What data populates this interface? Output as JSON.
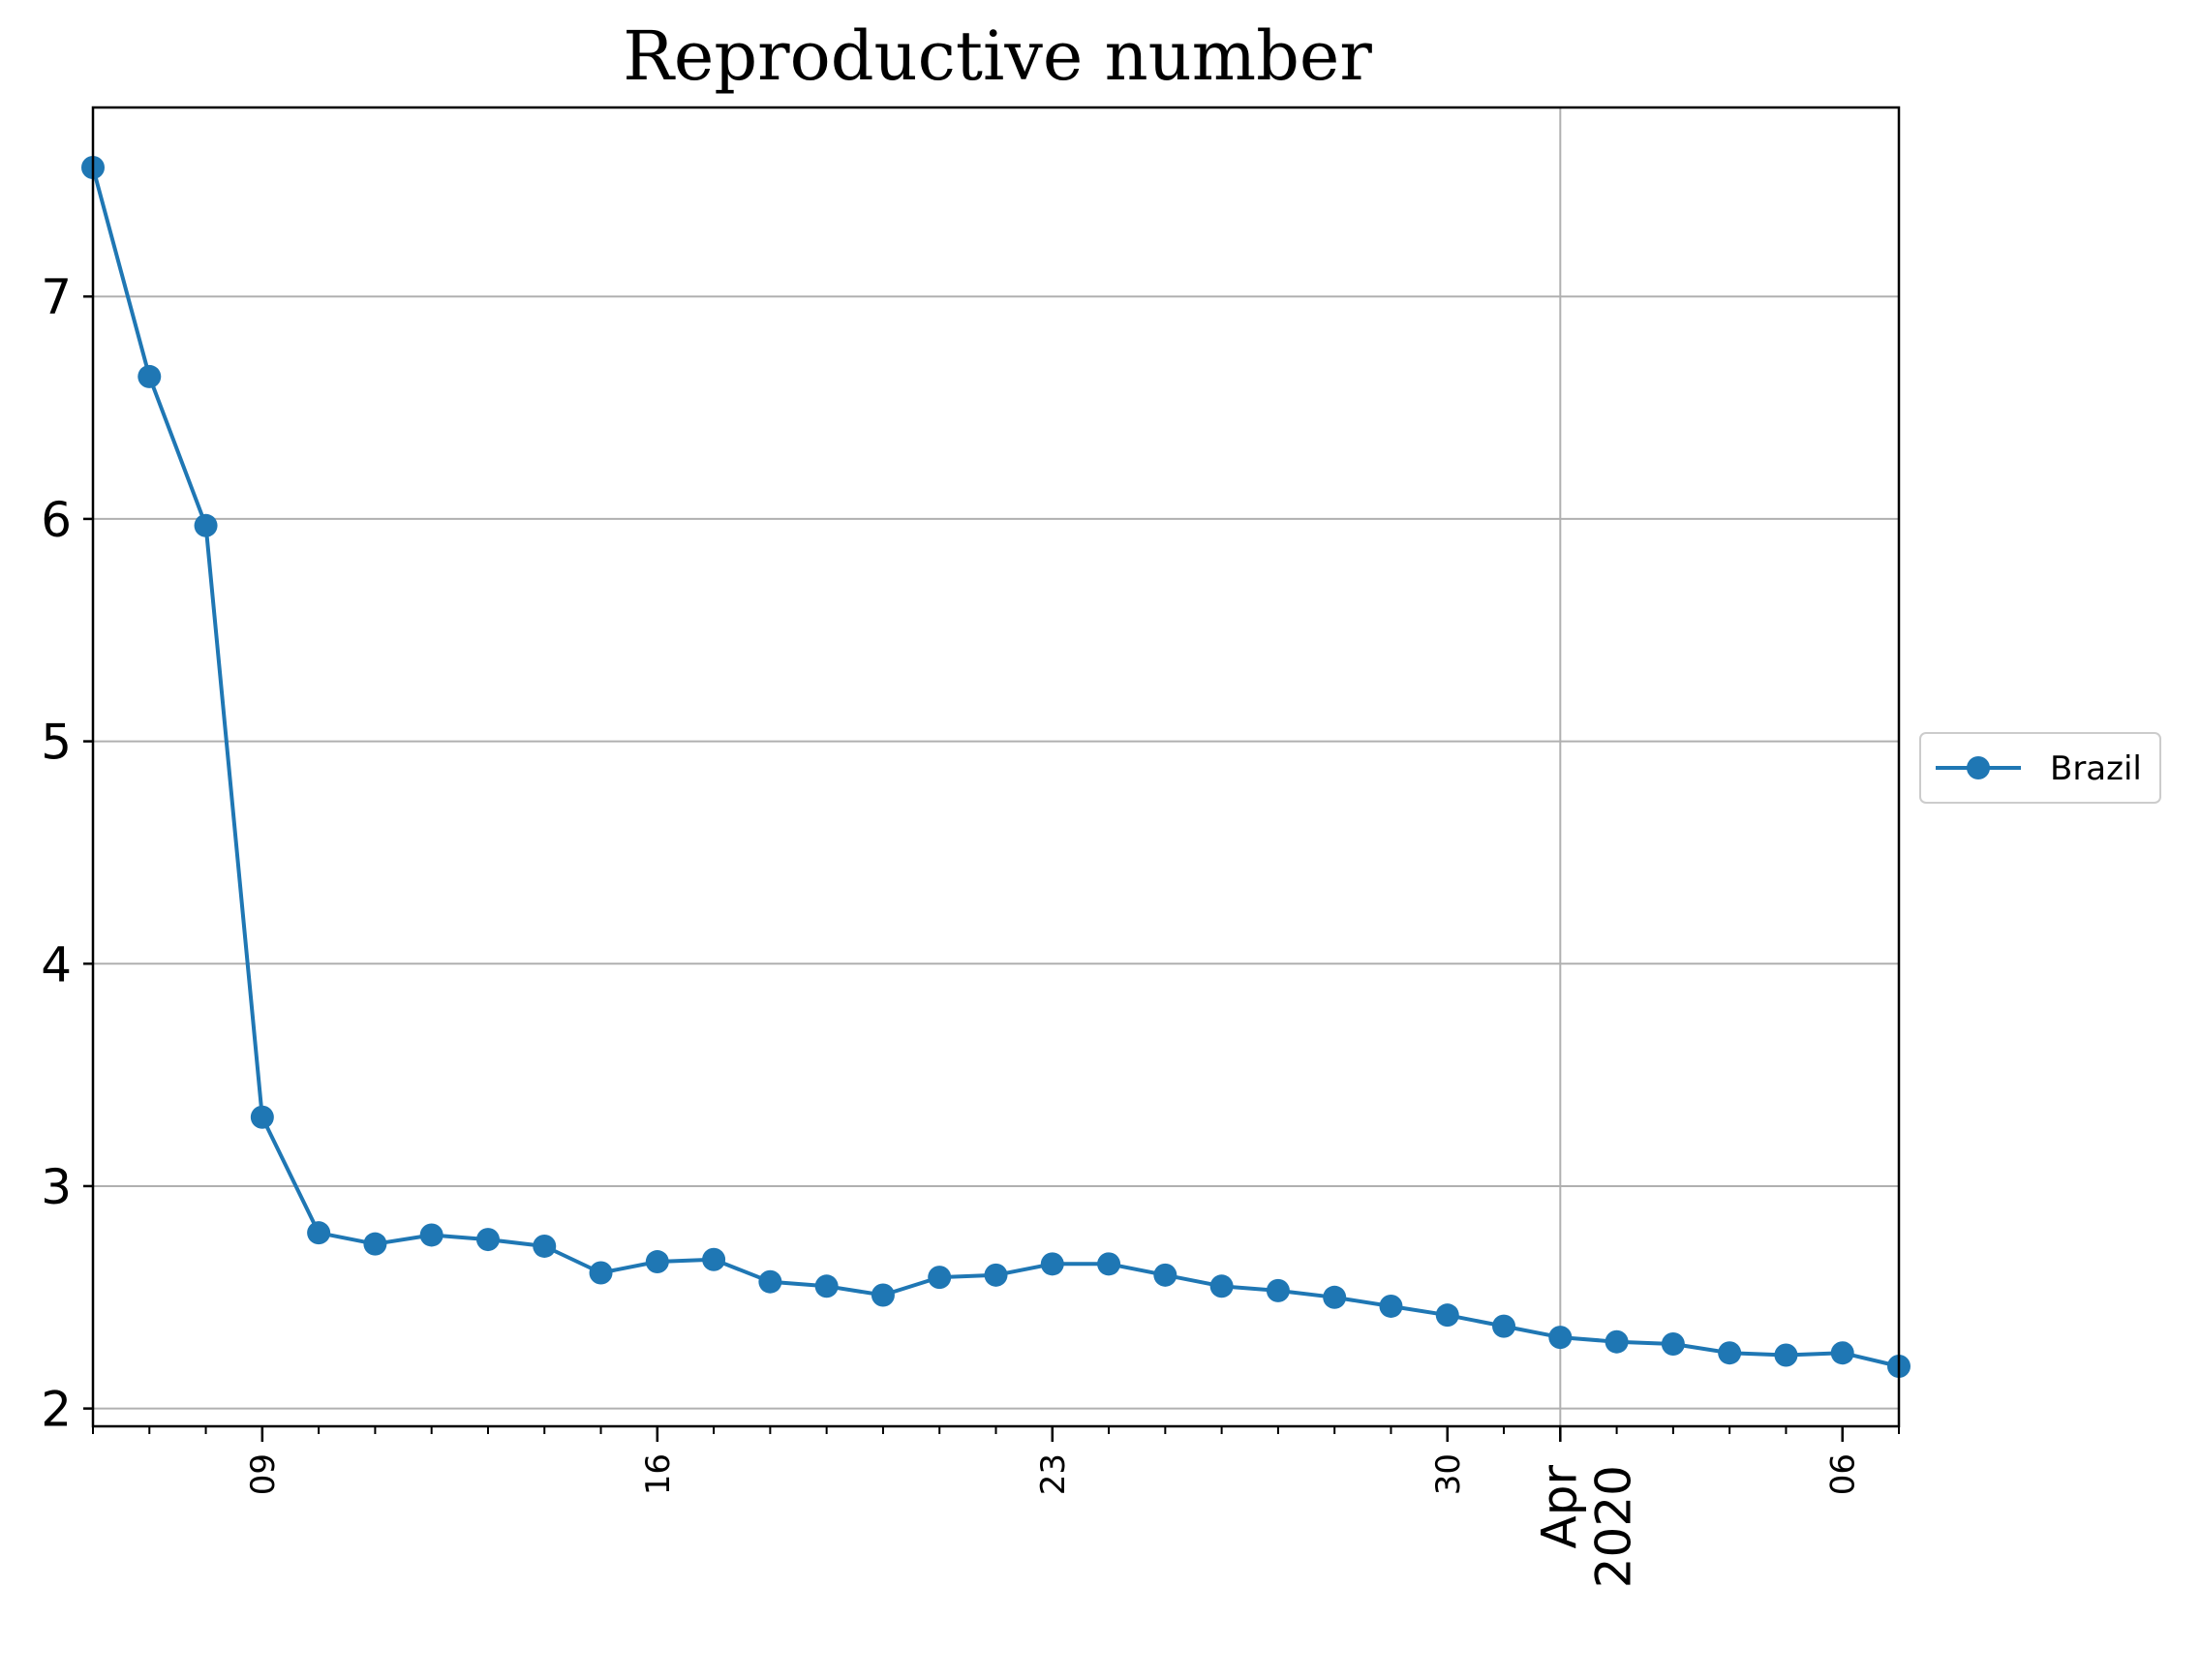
{
  "chart_data": {
    "type": "line",
    "title": "Reproductive number",
    "xlabel": "",
    "ylabel": "",
    "x_axis_type": "date",
    "xlim": [
      "2020-03-06",
      "2020-04-07"
    ],
    "ylim": [
      1.92,
      7.85
    ],
    "yticks": [
      2,
      3,
      4,
      5,
      6,
      7
    ],
    "grid": true,
    "legend_position": "center-right-outside",
    "x_tick_labels": [
      {
        "date": "2020-03-09",
        "label": "09"
      },
      {
        "date": "2020-03-16",
        "label": "16"
      },
      {
        "date": "2020-03-23",
        "label": "23"
      },
      {
        "date": "2020-03-30",
        "label": "30"
      },
      {
        "date": "2020-04-06",
        "label": "06"
      }
    ],
    "x_major_label": {
      "date": "2020-04-01",
      "lines": [
        "Apr",
        "2020"
      ]
    },
    "series": [
      {
        "name": "Brazil",
        "color": "#1f77b4",
        "marker": "circle",
        "x": [
          "2020-03-06",
          "2020-03-07",
          "2020-03-08",
          "2020-03-09",
          "2020-03-10",
          "2020-03-11",
          "2020-03-12",
          "2020-03-13",
          "2020-03-14",
          "2020-03-15",
          "2020-03-16",
          "2020-03-17",
          "2020-03-18",
          "2020-03-19",
          "2020-03-20",
          "2020-03-21",
          "2020-03-22",
          "2020-03-23",
          "2020-03-24",
          "2020-03-25",
          "2020-03-26",
          "2020-03-27",
          "2020-03-28",
          "2020-03-29",
          "2020-03-30",
          "2020-03-31",
          "2020-04-01",
          "2020-04-02",
          "2020-04-03",
          "2020-04-04",
          "2020-04-05",
          "2020-04-06",
          "2020-04-07"
        ],
        "values": [
          7.58,
          6.64,
          5.97,
          3.31,
          2.79,
          2.74,
          2.78,
          2.76,
          2.73,
          2.61,
          2.66,
          2.67,
          2.57,
          2.55,
          2.51,
          2.59,
          2.6,
          2.65,
          2.65,
          2.6,
          2.55,
          2.53,
          2.5,
          2.46,
          2.42,
          2.37,
          2.32,
          2.3,
          2.29,
          2.25,
          2.24,
          2.25,
          2.19
        ]
      }
    ]
  }
}
